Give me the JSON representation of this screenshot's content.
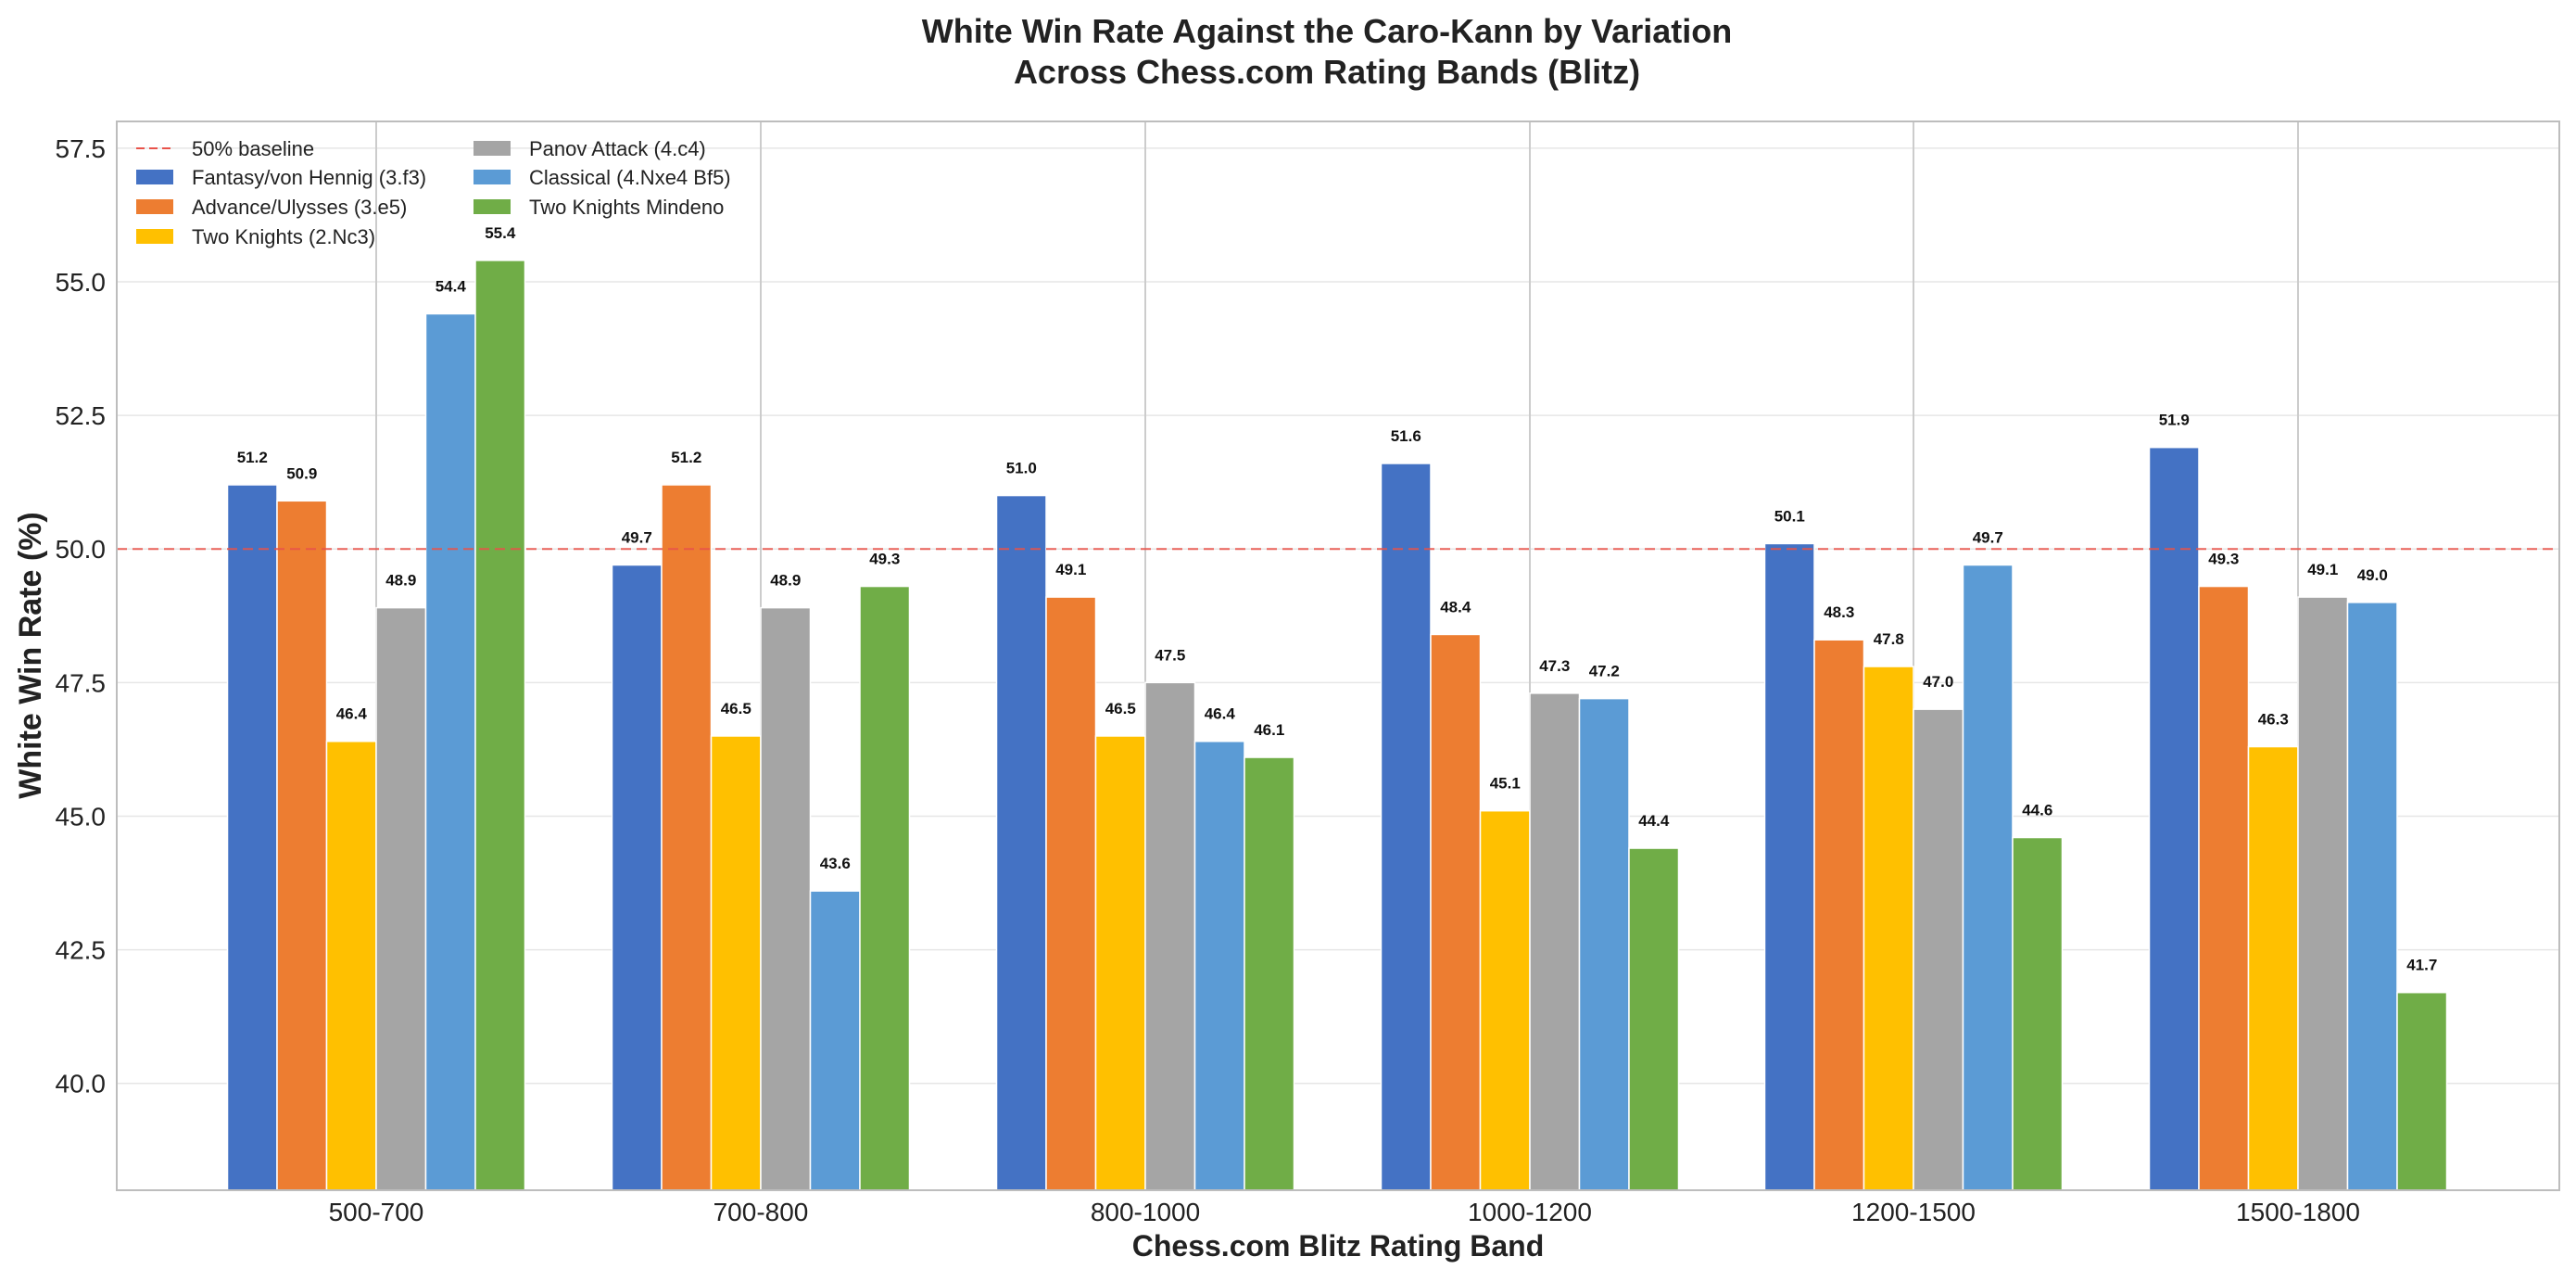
{
  "chart_data": {
    "type": "bar",
    "title": [
      "White Win Rate Against the Caro-Kann by Variation",
      "Across Chess.com Rating Bands (Blitz)"
    ],
    "xlabel": "Chess.com Blitz Rating Band",
    "ylabel": "White Win Rate (%)",
    "ylim": [
      38.0,
      58.0
    ],
    "yticks": [
      "40.0",
      "42.5",
      "45.0",
      "47.5",
      "50.0",
      "52.5",
      "55.0",
      "57.5"
    ],
    "categories": [
      "500-700",
      "700-800",
      "800-1000",
      "1000-1200",
      "1200-1500",
      "1500-1800"
    ],
    "baseline": {
      "name": "50% baseline",
      "value": 50.0,
      "color": "#e8534a"
    },
    "series": [
      {
        "name": "Fantasy/von Hennig (3.f3)",
        "color": "#4472c4",
        "values": [
          51.2,
          49.7,
          51.0,
          51.6,
          50.1,
          51.9
        ],
        "labels": [
          "51.2",
          "49.7",
          "51.0",
          "51.6",
          "50.1",
          "51.9"
        ]
      },
      {
        "name": "Advance/Ulysses (3.e5)",
        "color": "#ed7d31",
        "values": [
          50.9,
          51.2,
          49.1,
          48.4,
          48.3,
          49.3
        ],
        "labels": [
          "50.9",
          "51.2",
          "49.1",
          "48.4",
          "48.3",
          "49.3"
        ]
      },
      {
        "name": "Two Knights (2.Nc3)",
        "color": "#ffc000",
        "values": [
          46.4,
          46.5,
          46.5,
          45.1,
          47.8,
          46.3
        ],
        "labels": [
          "46.4",
          "46.5",
          "46.5",
          "45.1",
          "47.8",
          "46.3"
        ]
      },
      {
        "name": "Panov Attack (4.c4)",
        "color": "#a5a5a5",
        "values": [
          48.9,
          48.9,
          47.5,
          47.3,
          47.0,
          49.1
        ],
        "labels": [
          "48.9",
          "48.9",
          "47.5",
          "47.3",
          "47.0",
          "49.1"
        ]
      },
      {
        "name": "Classical (4.Nxe4 Bf5)",
        "color": "#5b9bd5",
        "values": [
          54.4,
          43.6,
          46.4,
          47.2,
          49.7,
          49.0
        ],
        "labels": [
          "54.4",
          "43.6",
          "46.4",
          "47.2",
          "49.7",
          "49.0"
        ]
      },
      {
        "name": "Two Knights Mindeno",
        "color": "#70ad47",
        "values": [
          55.4,
          49.3,
          46.1,
          44.4,
          44.6,
          41.7
        ],
        "labels": [
          "55.4",
          "49.3",
          "46.1",
          "44.4",
          "44.6",
          "41.7"
        ]
      }
    ],
    "grid": true,
    "legend": "top-left"
  }
}
